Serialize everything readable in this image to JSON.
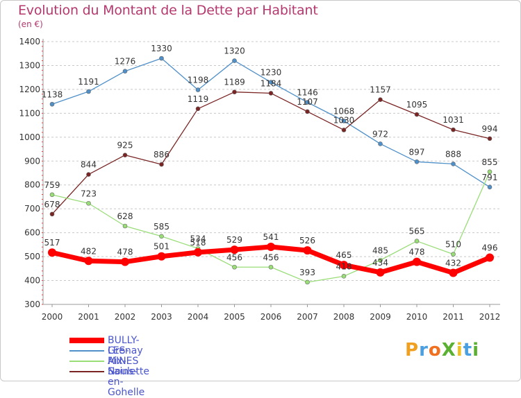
{
  "title": "Evolution du Montant de la Dette par Habitant",
  "subtitle": "(en €)",
  "logo_text": "ProXiti",
  "colors": {
    "title": "#b5386e",
    "legend_text": "#4a55cc",
    "grid": "#c8c8c8"
  },
  "chart_data": {
    "type": "line",
    "title": "Evolution du Montant de la Dette par Habitant",
    "subtitle": "(en €)",
    "x": [
      "2000",
      "2001",
      "2002",
      "2003",
      "2004",
      "2005",
      "2006",
      "2007",
      "2008",
      "2009",
      "2010",
      "2011",
      "2012"
    ],
    "ylim": [
      300,
      1400
    ],
    "yticks": [
      300,
      400,
      500,
      600,
      700,
      800,
      900,
      1000,
      1100,
      1200,
      1300,
      1400
    ],
    "grid": "horizontal dashed",
    "legend_position": "bottom-left",
    "series": [
      {
        "name": "BULLY-LES-MINES",
        "color": "#ff0000",
        "values": [
          517,
          482,
          478,
          501,
          518,
          529,
          541,
          526,
          465,
          434,
          478,
          432,
          496
        ]
      },
      {
        "name": "Grenay",
        "color": "#4f90c9",
        "values": [
          1138,
          1191,
          1276,
          1330,
          1198,
          1320,
          1230,
          1146,
          1068,
          972,
          897,
          888,
          791
        ]
      },
      {
        "name": "Aix-Noulette",
        "color": "#99dd77",
        "values": [
          759,
          723,
          628,
          585,
          534,
          456,
          456,
          393,
          418,
          485,
          565,
          510,
          855
        ]
      },
      {
        "name": "Sains-en-Gohelle",
        "color": "#7a2424",
        "values": [
          678,
          844,
          925,
          886,
          1119,
          1189,
          1184,
          1107,
          1030,
          1157,
          1095,
          1031,
          994
        ]
      }
    ]
  }
}
